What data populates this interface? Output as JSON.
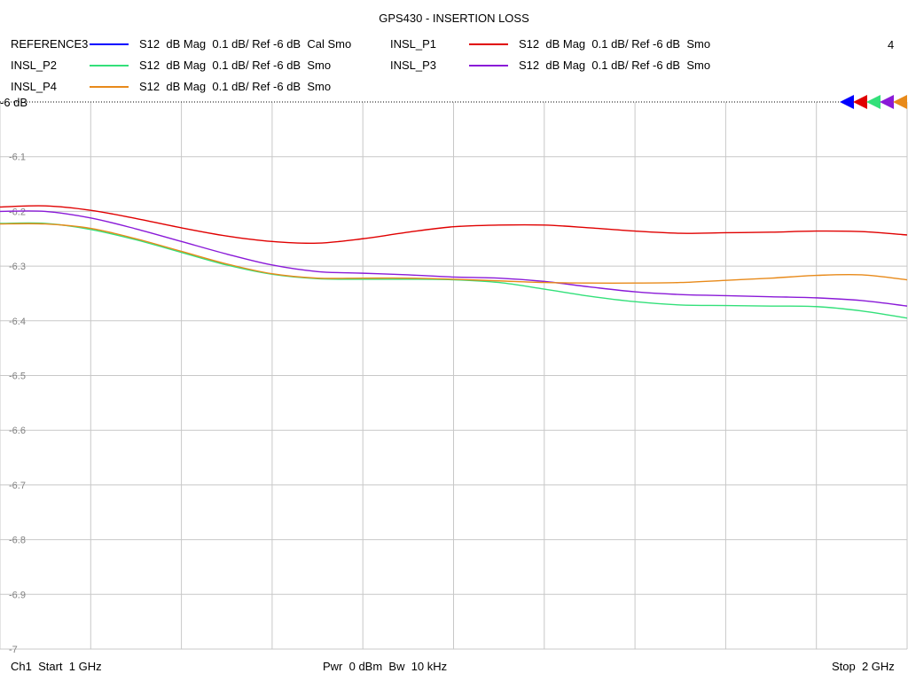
{
  "title": "GPS430 - INSERTION LOSS",
  "channel_number": "4",
  "legend": [
    {
      "name": "REFERENCE3",
      "color": "#0000ff",
      "desc": "S12  dB Mag  0.1 dB/ Ref -6 dB  Cal Smo"
    },
    {
      "name": "INSL_P1",
      "color": "#e00000",
      "desc": "S12  dB Mag  0.1 dB/ Ref -6 dB  Smo"
    },
    {
      "name": "INSL_P2",
      "color": "#33e07a",
      "desc": "S12  dB Mag  0.1 dB/ Ref -6 dB  Smo"
    },
    {
      "name": "INSL_P3",
      "color": "#8a1ad8",
      "desc": "S12  dB Mag  0.1 dB/ Ref -6 dB  Smo"
    },
    {
      "name": "INSL_P4",
      "color": "#e88a1a",
      "desc": "S12  dB Mag  0.1 dB/ Ref -6 dB  Smo"
    }
  ],
  "footer": {
    "start": "Ch1  Start  1 GHz",
    "power": "Pwr  0 dBm  Bw  10 kHz",
    "stop": "Stop  2 GHz"
  },
  "chart_data": {
    "type": "line",
    "title": "GPS430 - INSERTION LOSS",
    "xlabel": "",
    "ylabel": "",
    "xlim": [
      1.0,
      2.0
    ],
    "ylim": [
      -7.0,
      -6.0
    ],
    "ref_label": "-6 dB",
    "yticks": [
      "-6.1",
      "-6.2",
      "-6.3",
      "-6.4",
      "-6.5",
      "-6.6",
      "-6.7",
      "-6.8",
      "-6.9",
      "-7"
    ],
    "x": [
      1.0,
      1.05,
      1.1,
      1.15,
      1.2,
      1.25,
      1.3,
      1.35,
      1.4,
      1.45,
      1.5,
      1.55,
      1.6,
      1.65,
      1.7,
      1.75,
      1.8,
      1.85,
      1.9,
      1.95,
      2.0
    ],
    "series": [
      {
        "name": "INSL_P1",
        "color": "#e00000",
        "values": [
          -6.192,
          -6.19,
          -6.198,
          -6.213,
          -6.23,
          -6.245,
          -6.255,
          -6.258,
          -6.25,
          -6.238,
          -6.228,
          -6.225,
          -6.225,
          -6.23,
          -6.236,
          -6.24,
          -6.239,
          -6.238,
          -6.236,
          -6.237,
          -6.243
        ]
      },
      {
        "name": "INSL_P2",
        "color": "#33e07a",
        "values": [
          -6.222,
          -6.222,
          -6.233,
          -6.252,
          -6.275,
          -6.298,
          -6.315,
          -6.323,
          -6.324,
          -6.324,
          -6.325,
          -6.33,
          -6.342,
          -6.355,
          -6.365,
          -6.371,
          -6.372,
          -6.373,
          -6.374,
          -6.382,
          -6.395
        ]
      },
      {
        "name": "INSL_P3",
        "color": "#8a1ad8",
        "values": [
          -6.2,
          -6.2,
          -6.212,
          -6.232,
          -6.255,
          -6.278,
          -6.298,
          -6.31,
          -6.313,
          -6.316,
          -6.32,
          -6.322,
          -6.328,
          -6.338,
          -6.347,
          -6.352,
          -6.354,
          -6.356,
          -6.358,
          -6.363,
          -6.373
        ]
      },
      {
        "name": "INSL_P4",
        "color": "#e88a1a",
        "values": [
          -6.223,
          -6.223,
          -6.231,
          -6.25,
          -6.273,
          -6.296,
          -6.314,
          -6.322,
          -6.322,
          -6.322,
          -6.324,
          -6.327,
          -6.33,
          -6.331,
          -6.331,
          -6.33,
          -6.326,
          -6.322,
          -6.317,
          -6.316,
          -6.325
        ]
      }
    ]
  }
}
